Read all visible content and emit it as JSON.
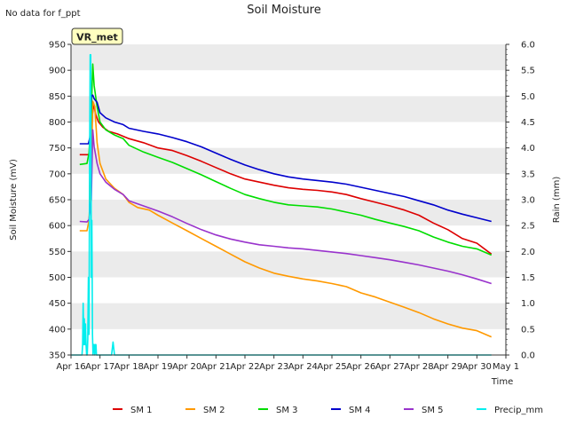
{
  "chart_data": {
    "type": "line",
    "title": "Soil Moisture",
    "note": "No data for f_ppt",
    "badge": "VR_met",
    "xlabel": "Time",
    "ylabel": "Soil Moisture (mV)",
    "y2label": "Rain (mm)",
    "xlim": [
      0,
      15
    ],
    "ylim": [
      350,
      950
    ],
    "y2lim": [
      0,
      6
    ],
    "x_ticks": [
      0,
      1,
      2,
      3,
      4,
      5,
      6,
      7,
      8,
      9,
      10,
      11,
      12,
      13,
      14,
      15
    ],
    "x_tick_labels": [
      "Apr 16",
      "Apr 17",
      "Apr 18",
      "Apr 19",
      "Apr 20",
      "Apr 21",
      "Apr 22",
      "Apr 23",
      "Apr 24",
      "Apr 25",
      "Apr 26",
      "Apr 27",
      "Apr 28",
      "Apr 29",
      "Apr 30",
      "May 1"
    ],
    "y_ticks": [
      350,
      400,
      450,
      500,
      550,
      600,
      650,
      700,
      750,
      800,
      850,
      900,
      950
    ],
    "y2_ticks": [
      0,
      0.5,
      1,
      1.5,
      2,
      2.5,
      3,
      3.5,
      4,
      4.5,
      5,
      5.5,
      6
    ],
    "y2_tick_labels": [
      "0.0",
      "0.5",
      "1.0",
      "1.5",
      "2.0",
      "2.5",
      "3.0",
      "3.5",
      "4.0",
      "4.5",
      "5.0",
      "5.5",
      "6.0"
    ],
    "series": [
      {
        "name": "SM 1",
        "color": "#dd0000",
        "axis": "left",
        "x": [
          0.3,
          0.6,
          0.65,
          0.72,
          0.78,
          0.85,
          0.95,
          1.1,
          1.3,
          1.6,
          2.0,
          2.5,
          3.0,
          3.5,
          4.0,
          4.5,
          5.0,
          5.5,
          6.0,
          6.5,
          7.0,
          7.5,
          8.0,
          8.5,
          9.0,
          9.5,
          10.0,
          10.5,
          11.0,
          11.5,
          12.0,
          12.5,
          13.0,
          13.5,
          14.0,
          14.5
        ],
        "y": [
          737,
          737,
          740,
          805,
          835,
          815,
          800,
          790,
          782,
          777,
          768,
          760,
          750,
          745,
          735,
          724,
          712,
          700,
          690,
          684,
          678,
          673,
          670,
          668,
          665,
          660,
          652,
          645,
          638,
          630,
          620,
          605,
          592,
          575,
          566,
          545
        ]
      },
      {
        "name": "SM 2",
        "color": "#ff9900",
        "axis": "left",
        "x": [
          0.3,
          0.55,
          0.62,
          0.7,
          0.75,
          0.82,
          0.9,
          1.0,
          1.2,
          1.5,
          1.8,
          2.0,
          2.3,
          2.7,
          3.0,
          3.5,
          4.0,
          4.5,
          5.0,
          5.5,
          6.0,
          6.5,
          7.0,
          7.5,
          8.0,
          8.5,
          9.0,
          9.5,
          10.0,
          10.5,
          11.0,
          11.5,
          12.0,
          12.5,
          13.0,
          13.5,
          14.0,
          14.5
        ],
        "y": [
          590,
          590,
          610,
          700,
          840,
          830,
          760,
          720,
          690,
          672,
          660,
          645,
          635,
          630,
          620,
          605,
          590,
          575,
          560,
          545,
          530,
          518,
          508,
          502,
          497,
          493,
          488,
          482,
          470,
          462,
          452,
          442,
          432,
          420,
          410,
          402,
          397,
          385
        ]
      },
      {
        "name": "SM 3",
        "color": "#00dd00",
        "axis": "left",
        "x": [
          0.3,
          0.55,
          0.62,
          0.7,
          0.75,
          0.8,
          0.9,
          1.0,
          1.2,
          1.5,
          1.8,
          2.0,
          2.5,
          3.0,
          3.5,
          4.0,
          4.5,
          5.0,
          5.5,
          6.0,
          6.5,
          7.0,
          7.5,
          8.0,
          8.5,
          9.0,
          9.5,
          10.0,
          10.5,
          11.0,
          11.5,
          12.0,
          12.5,
          13.0,
          13.5,
          14.0,
          14.5
        ],
        "y": [
          718,
          720,
          740,
          820,
          912,
          870,
          830,
          800,
          785,
          775,
          768,
          755,
          742,
          732,
          722,
          710,
          698,
          685,
          672,
          660,
          652,
          645,
          640,
          638,
          636,
          632,
          626,
          620,
          612,
          605,
          598,
          590,
          578,
          568,
          560,
          555,
          543
        ]
      },
      {
        "name": "SM 4",
        "color": "#0000cc",
        "axis": "left",
        "x": [
          0.3,
          0.6,
          0.65,
          0.7,
          0.75,
          0.8,
          0.9,
          1.0,
          1.2,
          1.5,
          1.8,
          2.0,
          2.5,
          3.0,
          3.5,
          4.0,
          4.5,
          5.0,
          5.5,
          6.0,
          6.5,
          7.0,
          7.5,
          8.0,
          8.5,
          9.0,
          9.5,
          10.0,
          10.5,
          11.0,
          11.5,
          12.0,
          12.5,
          13.0,
          13.5,
          14.0,
          14.5
        ],
        "y": [
          758,
          758,
          770,
          850,
          852,
          845,
          838,
          818,
          808,
          800,
          795,
          788,
          782,
          777,
          770,
          762,
          752,
          740,
          728,
          717,
          708,
          700,
          694,
          690,
          687,
          684,
          680,
          674,
          668,
          662,
          656,
          648,
          640,
          630,
          622,
          615,
          608
        ]
      },
      {
        "name": "SM 5",
        "color": "#9933cc",
        "axis": "left",
        "x": [
          0.3,
          0.55,
          0.62,
          0.7,
          0.75,
          0.8,
          0.9,
          1.0,
          1.2,
          1.5,
          1.8,
          2.0,
          2.5,
          3.0,
          3.5,
          4.0,
          4.5,
          5.0,
          5.5,
          6.0,
          6.5,
          7.0,
          7.5,
          8.0,
          8.5,
          9.0,
          9.5,
          10.0,
          10.5,
          11.0,
          11.5,
          12.0,
          12.5,
          13.0,
          13.5,
          14.0,
          14.5
        ],
        "y": [
          608,
          607,
          612,
          650,
          785,
          752,
          720,
          700,
          684,
          670,
          660,
          648,
          638,
          628,
          617,
          604,
          592,
          582,
          574,
          568,
          563,
          560,
          557,
          555,
          552,
          549,
          546,
          542,
          538,
          534,
          529,
          524,
          518,
          512,
          505,
          497,
          488
        ]
      },
      {
        "name": "Precip_mm",
        "color": "#00eeee",
        "axis": "right",
        "x": [
          0.0,
          0.38,
          0.4,
          0.42,
          0.44,
          0.46,
          0.48,
          0.5,
          0.52,
          0.54,
          0.56,
          0.58,
          0.6,
          0.62,
          0.64,
          0.66,
          0.68,
          0.7,
          0.72,
          0.74,
          0.76,
          0.78,
          0.8,
          0.82,
          0.84,
          0.86,
          0.88,
          0.9,
          0.92,
          0.94,
          0.96,
          0.98,
          1.0,
          1.1,
          1.4,
          1.45,
          1.5,
          2.0,
          14.5
        ],
        "y": [
          0,
          0,
          0.2,
          1.0,
          0.2,
          0.7,
          0.2,
          0.6,
          0.2,
          0,
          0,
          0.3,
          1.5,
          0.4,
          3.5,
          5.8,
          5.8,
          1.5,
          2.6,
          0.4,
          0,
          0.2,
          0.2,
          0,
          0.2,
          0.2,
          0,
          0,
          0,
          0,
          0,
          0,
          0,
          0,
          0,
          0.25,
          0,
          0,
          0
        ]
      }
    ],
    "legend": [
      "SM 1",
      "SM 2",
      "SM 3",
      "SM 4",
      "SM 5",
      "Precip_mm"
    ],
    "legend_position": "bottom-center",
    "grid": "horizontal bands"
  }
}
